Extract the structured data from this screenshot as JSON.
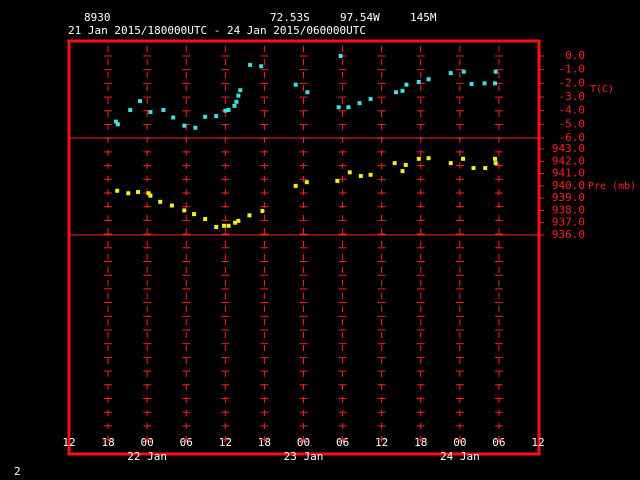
{
  "header": {
    "station": "8930",
    "lat": "72.53S",
    "lon": "97.54W",
    "elev": "145M",
    "period": "21 Jan 2015/180000UTC - 24 Jan 2015/060000UTC"
  },
  "x_axis": {
    "xlim": [
      0,
      72
    ],
    "xticks": [
      {
        "value": 0,
        "label": "12"
      },
      {
        "value": 6,
        "label": "18"
      },
      {
        "value": 12,
        "label": "00"
      },
      {
        "value": 18,
        "label": "06"
      },
      {
        "value": 24,
        "label": "12"
      },
      {
        "value": 30,
        "label": "18"
      },
      {
        "value": 36,
        "label": "00"
      },
      {
        "value": 42,
        "label": "06"
      },
      {
        "value": 48,
        "label": "12"
      },
      {
        "value": 54,
        "label": "18"
      },
      {
        "value": 60,
        "label": "00"
      },
      {
        "value": 66,
        "label": "06"
      },
      {
        "value": 72,
        "label": "12"
      }
    ],
    "day_labels": [
      {
        "value": 12,
        "label": "22 Jan"
      },
      {
        "value": 36,
        "label": "23 Jan"
      },
      {
        "value": 60,
        "label": "24 Jan"
      }
    ]
  },
  "page_number": "2",
  "chart_data": [
    {
      "type": "scatter",
      "ylabel": "T(C)",
      "color": "#40e0e0",
      "ylim": [
        -6,
        0
      ],
      "yticks": [
        {
          "value": 0,
          "label": "0.0"
        },
        {
          "value": -1,
          "label": "-1.0"
        },
        {
          "value": -2,
          "label": "-2.0"
        },
        {
          "value": -3,
          "label": "-3.0"
        },
        {
          "value": -4,
          "label": "-4.0"
        },
        {
          "value": -5,
          "label": "-5.0"
        },
        {
          "value": -6,
          "label": "-6.0"
        }
      ],
      "x": [
        7.2,
        7.5,
        9.4,
        10.9,
        12.5,
        14.5,
        16.0,
        17.7,
        19.4,
        20.9,
        22.6,
        24.0,
        24.5,
        25.4,
        25.7,
        26.0,
        26.3,
        27.8,
        29.5,
        34.8,
        36.6,
        41.4,
        41.7,
        42.9,
        44.6,
        46.3,
        50.2,
        51.2,
        51.8,
        53.7,
        55.2,
        58.6,
        60.6,
        61.8,
        63.8,
        65.4,
        65.5
      ],
      "values": [
        -4.8,
        -5.0,
        -3.95,
        -3.3,
        -4.1,
        -3.95,
        -4.5,
        -5.1,
        -5.25,
        -4.45,
        -4.4,
        -4.0,
        -3.95,
        -3.65,
        -3.35,
        -2.9,
        -2.5,
        -0.65,
        -0.75,
        -2.1,
        -2.65,
        -3.75,
        0.0,
        -3.75,
        -3.45,
        -3.15,
        -2.65,
        -2.55,
        -2.1,
        -1.9,
        -1.7,
        -1.25,
        -1.15,
        -2.05,
        -2.0,
        -2.0,
        -1.15
      ]
    },
    {
      "type": "scatter",
      "ylabel": "Pre (mb)",
      "color": "#f0f020",
      "ylim": [
        936,
        943
      ],
      "yticks": [
        {
          "value": 943,
          "label": "943.0"
        },
        {
          "value": 942,
          "label": "942.0"
        },
        {
          "value": 941,
          "label": "941.0"
        },
        {
          "value": 940,
          "label": "940.0"
        },
        {
          "value": 939,
          "label": "939.0"
        },
        {
          "value": 938,
          "label": "938.0"
        },
        {
          "value": 937,
          "label": "937.0"
        },
        {
          "value": 936,
          "label": "936.0"
        }
      ],
      "x": [
        7.4,
        9.1,
        10.6,
        12.2,
        12.5,
        14.0,
        15.8,
        17.7,
        19.2,
        20.9,
        22.6,
        23.8,
        24.5,
        25.5,
        26.0,
        27.7,
        29.7,
        34.8,
        36.5,
        41.2,
        43.1,
        44.8,
        46.3,
        50.0,
        51.2,
        51.7,
        53.7,
        55.2,
        58.6,
        60.5,
        62.1,
        63.9,
        65.4,
        65.5
      ],
      "values": [
        939.6,
        939.4,
        939.5,
        939.4,
        939.2,
        938.7,
        938.4,
        938.0,
        937.7,
        937.3,
        936.65,
        936.75,
        936.75,
        937.0,
        937.15,
        937.6,
        937.95,
        940.0,
        940.3,
        940.4,
        941.1,
        940.8,
        940.9,
        941.85,
        941.2,
        941.7,
        942.2,
        942.25,
        941.85,
        942.2,
        941.45,
        941.45,
        942.2,
        941.85
      ]
    }
  ]
}
